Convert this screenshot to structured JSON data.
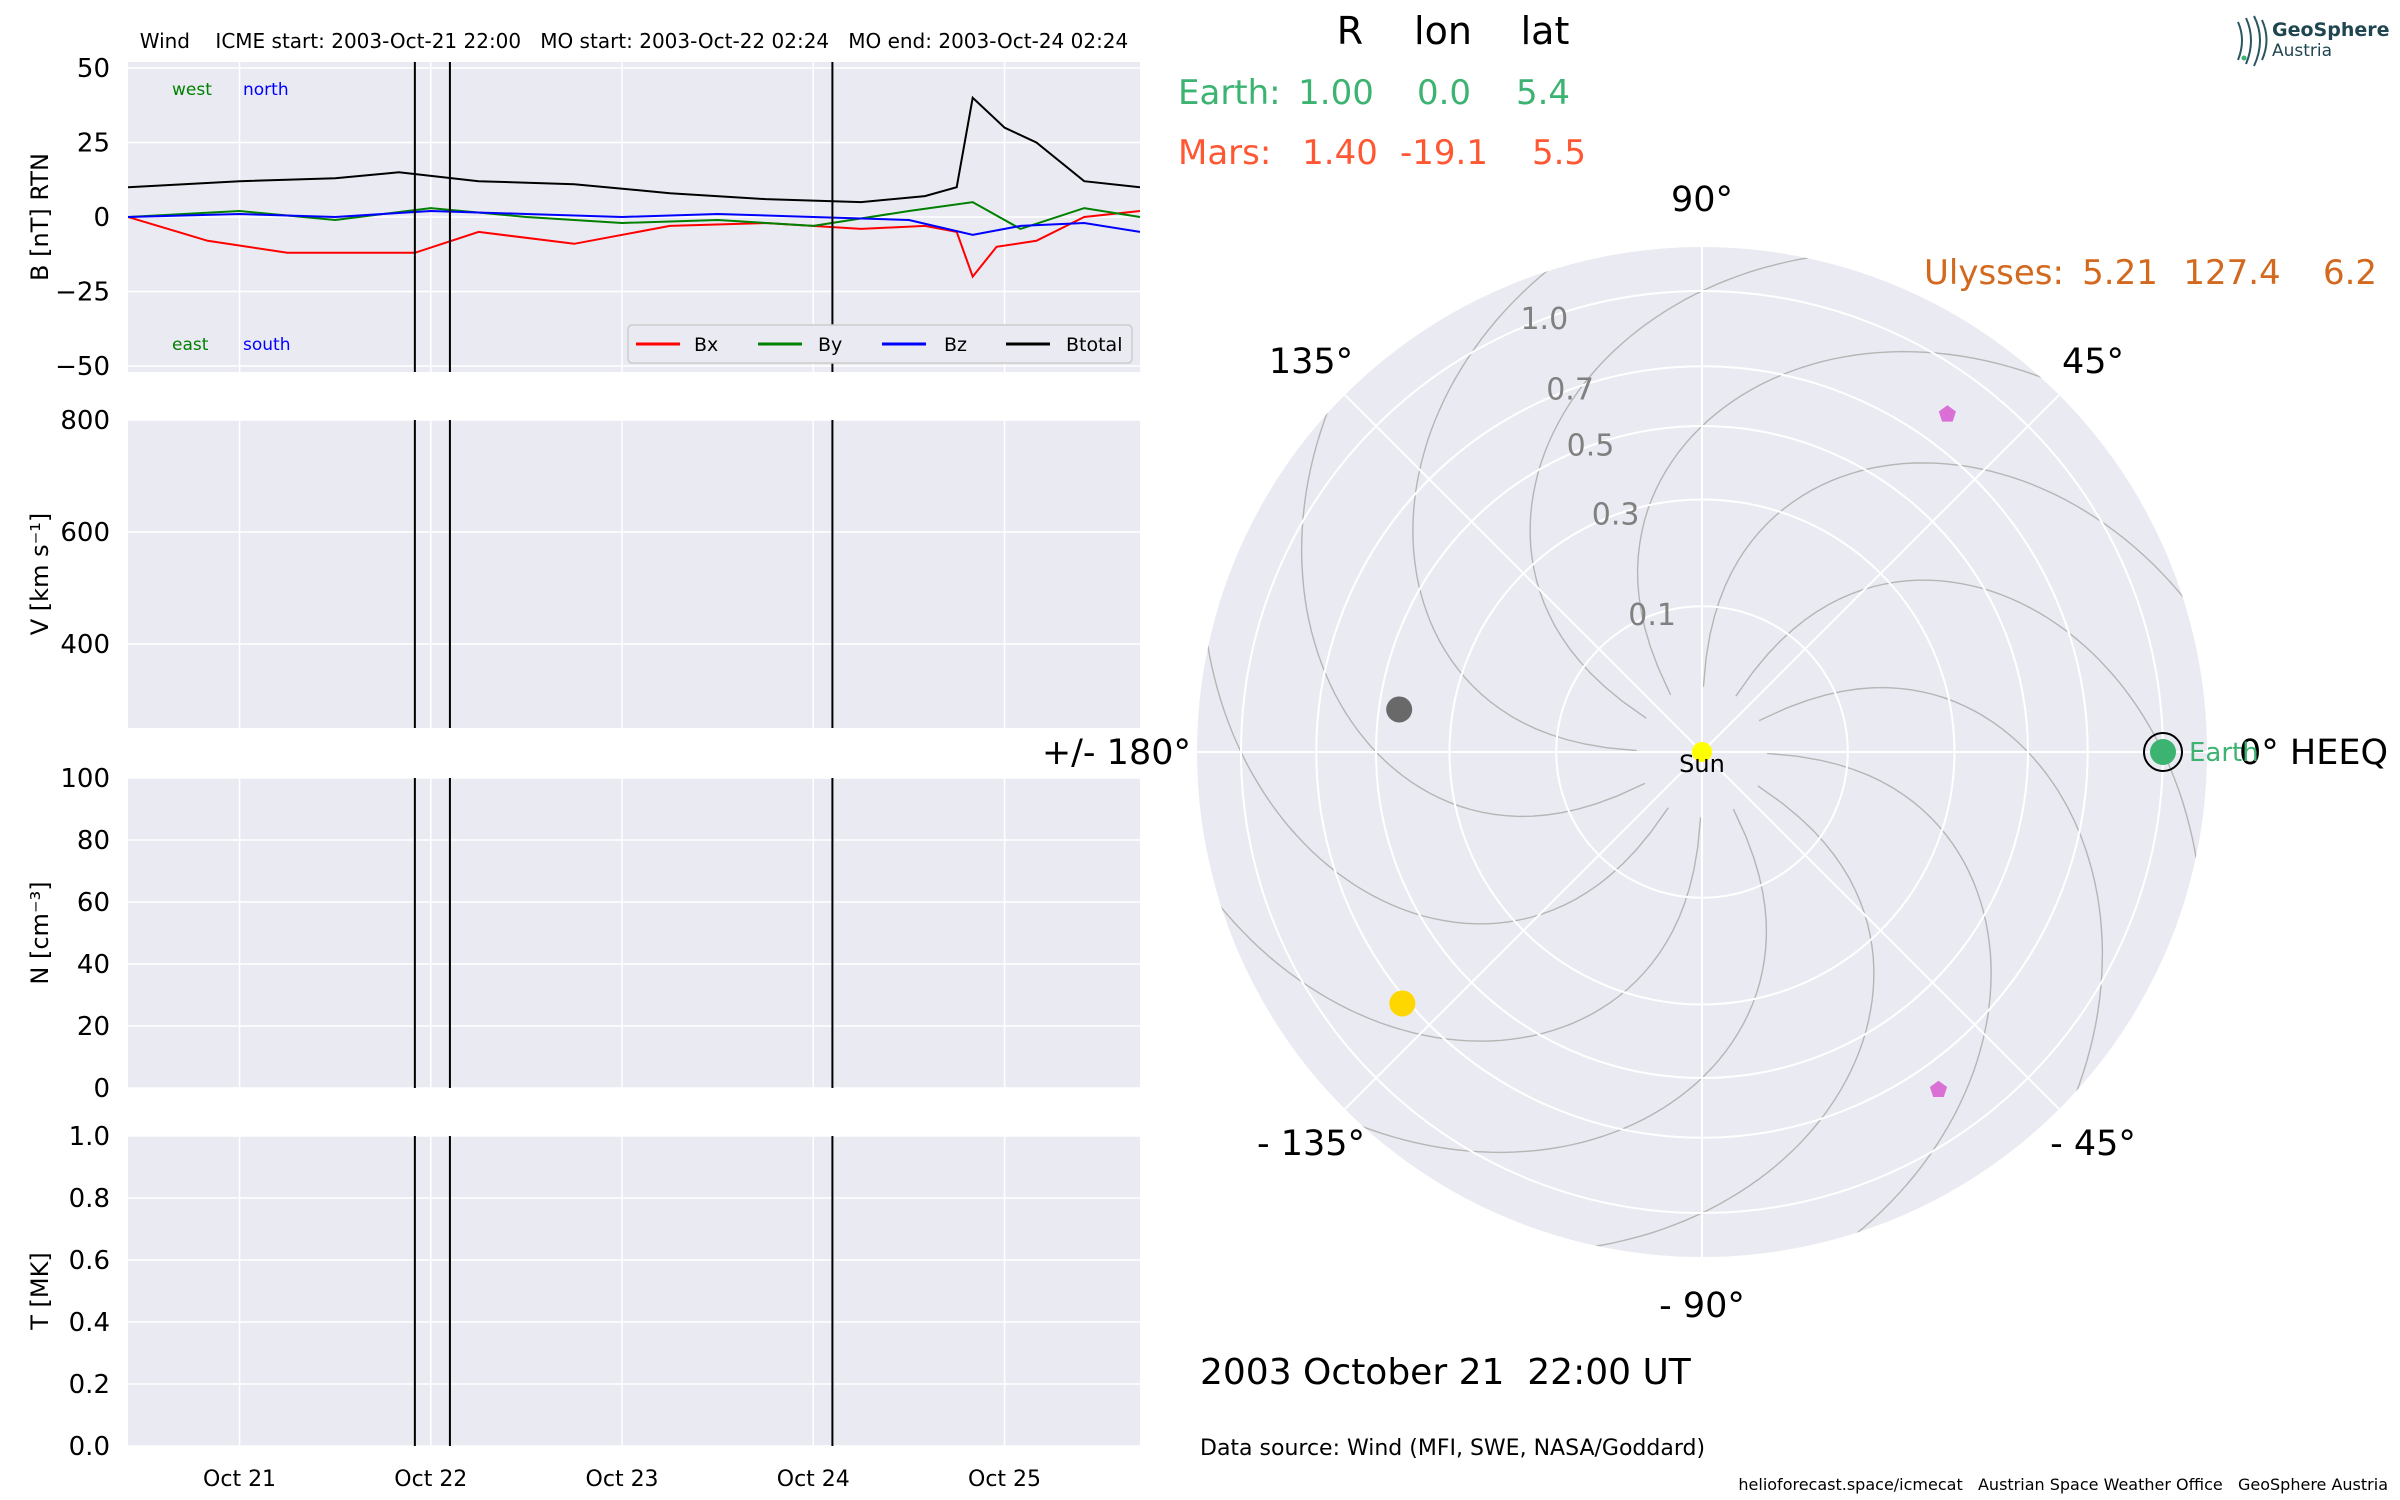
{
  "colors": {
    "panel_bg": "#eaeaf2",
    "grid": "#ffffff",
    "bx": "#ff0000",
    "by": "#008000",
    "bz": "#0000ff",
    "btotal": "#000000",
    "earth": "#3cb371",
    "mars": "#ff5733",
    "ulysses": "#d2691e",
    "mercury": "#696969",
    "venus": "#ffd700",
    "sun": "#ffff00",
    "spacecraft_marker": "#da70d6",
    "polar_label": "#808080"
  },
  "chart_data": [
    {
      "type": "line",
      "panel": "magnetic-field",
      "title": "Wind    ICME start: 2003-Oct-21 22:00   MO start: 2003-Oct-22 02:24   MO end: 2003-Oct-24 02:24",
      "ylabel": "B [nT] RTN",
      "ylim": [
        -52,
        52
      ],
      "yticks": [
        50,
        25,
        0,
        -25,
        -50
      ],
      "ytick_labels": [
        "50",
        "25",
        "0",
        "−25",
        "−50"
      ],
      "xlim": [
        "2003-10-20 10:00",
        "2003-10-25 17:00"
      ],
      "grid": true,
      "legend_position": "lower-right",
      "corner_labels": {
        "west": "west",
        "north": "north",
        "east": "east",
        "south": "south"
      },
      "series": [
        {
          "name": "Bx",
          "color_key": "bx",
          "x": [
            "2003-10-20 10:00",
            "2003-10-20 20:00",
            "2003-10-21 06:00",
            "2003-10-21 12:00",
            "2003-10-21 22:00",
            "2003-10-22 06:00",
            "2003-10-22 18:00",
            "2003-10-23 06:00",
            "2003-10-23 18:00",
            "2003-10-24 06:00",
            "2003-10-24 14:00",
            "2003-10-24 18:00",
            "2003-10-24 20:00",
            "2003-10-24 23:00",
            "2003-10-25 04:00",
            "2003-10-25 10:00",
            "2003-10-25 17:00"
          ],
          "y": [
            0,
            -8,
            -12,
            -12,
            -12,
            -5,
            -9,
            -3,
            -2,
            -4,
            -3,
            -5,
            -20,
            -10,
            -8,
            0,
            2
          ]
        },
        {
          "name": "By",
          "color_key": "by",
          "x": [
            "2003-10-20 10:00",
            "2003-10-21 00:00",
            "2003-10-21 12:00",
            "2003-10-22 00:00",
            "2003-10-22 12:00",
            "2003-10-23 00:00",
            "2003-10-23 12:00",
            "2003-10-24 00:00",
            "2003-10-24 12:00",
            "2003-10-24 20:00",
            "2003-10-25 02:00",
            "2003-10-25 10:00",
            "2003-10-25 17:00"
          ],
          "y": [
            0,
            2,
            -1,
            3,
            0,
            -2,
            -1,
            -3,
            2,
            5,
            -4,
            3,
            0
          ]
        },
        {
          "name": "Bz",
          "color_key": "bz",
          "x": [
            "2003-10-20 10:00",
            "2003-10-21 00:00",
            "2003-10-21 12:00",
            "2003-10-22 00:00",
            "2003-10-22 12:00",
            "2003-10-23 00:00",
            "2003-10-23 12:00",
            "2003-10-24 00:00",
            "2003-10-24 12:00",
            "2003-10-24 20:00",
            "2003-10-25 02:00",
            "2003-10-25 10:00",
            "2003-10-25 17:00"
          ],
          "y": [
            0,
            1,
            0,
            2,
            1,
            0,
            1,
            0,
            -1,
            -6,
            -3,
            -2,
            -5
          ]
        },
        {
          "name": "Btotal",
          "color_key": "btotal",
          "x": [
            "2003-10-20 10:00",
            "2003-10-21 00:00",
            "2003-10-21 12:00",
            "2003-10-21 20:00",
            "2003-10-22 06:00",
            "2003-10-22 18:00",
            "2003-10-23 06:00",
            "2003-10-23 18:00",
            "2003-10-24 06:00",
            "2003-10-24 14:00",
            "2003-10-24 18:00",
            "2003-10-24 20:00",
            "2003-10-25 00:00",
            "2003-10-25 04:00",
            "2003-10-25 10:00",
            "2003-10-25 17:00"
          ],
          "y": [
            10,
            12,
            13,
            15,
            12,
            11,
            8,
            6,
            5,
            7,
            10,
            40,
            30,
            25,
            12,
            10
          ]
        }
      ],
      "vlines": [
        "2003-10-21 22:00",
        "2003-10-22 02:24",
        "2003-10-24 02:24"
      ]
    },
    {
      "type": "line",
      "panel": "speed",
      "ylabel": "V [km s⁻¹]",
      "ylim": [
        250,
        800
      ],
      "yticks": [
        800,
        600,
        400
      ],
      "ytick_labels": [
        "800",
        "600",
        "400"
      ],
      "grid": true,
      "series": [],
      "vlines": [
        "2003-10-21 22:00",
        "2003-10-22 02:24",
        "2003-10-24 02:24"
      ]
    },
    {
      "type": "line",
      "panel": "density",
      "ylabel": "N [cm⁻³]",
      "ylim": [
        0,
        100
      ],
      "yticks": [
        100,
        80,
        60,
        40,
        20,
        0
      ],
      "ytick_labels": [
        "100",
        "80",
        "60",
        "40",
        "20",
        "0"
      ],
      "grid": true,
      "series": [],
      "vlines": [
        "2003-10-21 22:00",
        "2003-10-22 02:24",
        "2003-10-24 02:24"
      ]
    },
    {
      "type": "line",
      "panel": "temperature",
      "ylabel": "T [MK]",
      "ylim": [
        0,
        1
      ],
      "yticks": [
        1.0,
        0.8,
        0.6,
        0.4,
        0.2,
        0.0
      ],
      "ytick_labels": [
        "1.0",
        "0.8",
        "0.6",
        "0.4",
        "0.2",
        "0.0"
      ],
      "xticks": [
        "2003-10-21",
        "2003-10-22",
        "2003-10-23",
        "2003-10-24",
        "2003-10-25"
      ],
      "xtick_labels": [
        "Oct 21",
        "Oct 22",
        "Oct 23",
        "Oct 24",
        "Oct 25"
      ],
      "grid": true,
      "series": [],
      "vlines": [
        "2003-10-21 22:00",
        "2003-10-22 02:24",
        "2003-10-24 02:24"
      ]
    },
    {
      "type": "scatter",
      "panel": "polar-positions",
      "projection": "polar",
      "r_scale": "sqrt",
      "r_max_au": 1.2,
      "r_ticks": [
        0.1,
        0.3,
        0.5,
        0.7,
        1.0
      ],
      "r_tick_labels": [
        "0.1",
        "0.3",
        "0.5",
        "0.7",
        "1.0"
      ],
      "theta_ticks": [
        0,
        45,
        90,
        135,
        180,
        -135,
        -90,
        -45
      ],
      "theta_labels": [
        "0° HEEQ",
        "45°",
        "90°",
        "135°",
        "+/- 180°",
        "- 135°",
        "- 90°",
        "- 45°"
      ],
      "spirals": 12,
      "points": [
        {
          "name": "Sun",
          "r": 0,
          "lon": 0,
          "color_key": "sun",
          "marker": "circle",
          "label": "Sun"
        },
        {
          "name": "Earth",
          "r": 1.0,
          "lon": 0.0,
          "color_key": "earth",
          "marker": "circle-ringed",
          "label": "Earth"
        },
        {
          "name": "Mercury",
          "r": 0.44,
          "lon": 172,
          "color_key": "mercury",
          "marker": "circle",
          "label": ""
        },
        {
          "name": "Venus",
          "r": 0.72,
          "lon": -140,
          "color_key": "venus",
          "marker": "circle",
          "label": ""
        },
        {
          "name": "spacecraft-1",
          "r": 0.82,
          "lon": 54,
          "color_key": "spacecraft_marker",
          "marker": "pentagon",
          "label": ""
        },
        {
          "name": "spacecraft-2",
          "r": 0.8,
          "lon": -55,
          "color_key": "spacecraft_marker",
          "marker": "pentagon",
          "label": ""
        }
      ]
    }
  ],
  "position_table": {
    "headers": {
      "r": "R",
      "lon": "lon",
      "lat": "lat"
    },
    "earth": {
      "label": "Earth:",
      "r": "1.00",
      "lon": "0.0",
      "lat": "5.4"
    },
    "mars": {
      "label": "Mars:",
      "r": "1.40",
      "lon": "-19.1",
      "lat": "5.5"
    },
    "ulysses": {
      "label": "Ulysses:",
      "r": "5.21",
      "lon": "127.4",
      "lat": "6.2"
    }
  },
  "datetime": "2003 October 21  22:00 UT",
  "data_source": "Data source: Wind (MFI, SWE, NASA/Goddard)",
  "footer": "helioforecast.space/icmecat   Austrian Space Weather Office   GeoSphere Austria",
  "logo": {
    "line1": "GeoSphere",
    "line2": "Austria"
  }
}
